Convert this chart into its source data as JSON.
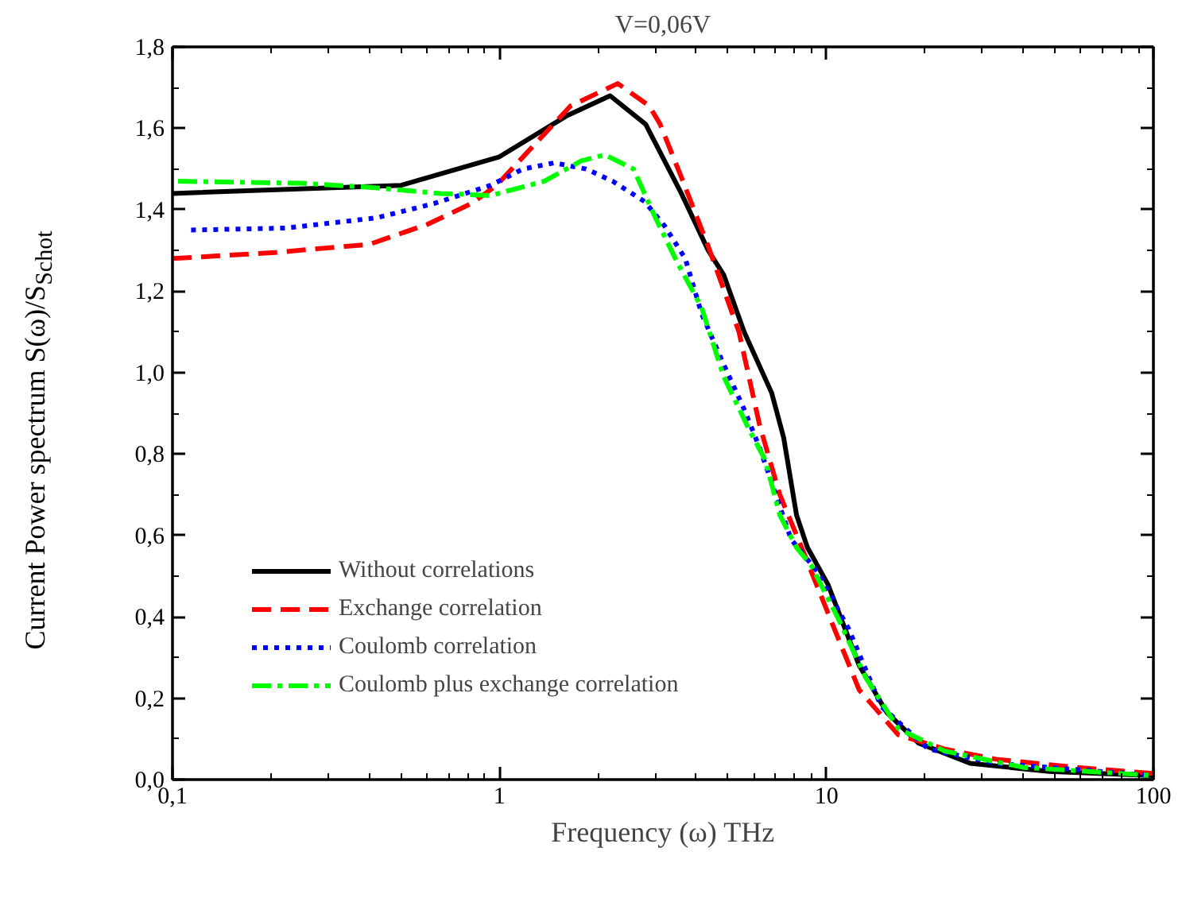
{
  "chart_data": {
    "type": "line",
    "title": "V=0,06V",
    "xlabel": "Frequency (ω) THz",
    "ylabel": "Current Power spectrum S(ω)/S$_{Schot}$",
    "log": "x",
    "xlim": [
      0.1,
      100
    ],
    "ylim": [
      0,
      1.8
    ],
    "xticks": [
      {
        "value": 0.1,
        "label": "0,1"
      },
      1,
      10,
      100
    ],
    "yticks": [
      {
        "value": 0,
        "label": "0,0"
      },
      {
        "value": 0.2,
        "label": "0,2"
      },
      {
        "value": 0.4,
        "label": "0,4"
      },
      {
        "value": 0.6,
        "label": "0,6"
      },
      {
        "value": 0.8,
        "label": "0,8"
      },
      {
        "value": 1.0,
        "label": "1,0"
      },
      {
        "value": 1.2,
        "label": "1,2"
      },
      {
        "value": 1.4,
        "label": "1,4"
      },
      {
        "value": 1.6,
        "label": "1,6"
      },
      {
        "value": 1.8,
        "label": "1,8"
      }
    ],
    "grid": false,
    "legend": "bottom left",
    "marker": "none",
    "series": [
      {
        "name": "Without correlations",
        "color": "#000000",
        "line_style": "solid",
        "x": [
          0.1,
          0.5,
          1.0,
          1.6,
          2.18,
          2.8,
          3.6,
          4.35,
          4.85,
          5.6,
          6.8,
          7.4,
          8.1,
          8.75,
          10.1,
          12.6,
          15.3,
          19.1,
          27.5,
          48,
          100
        ],
        "values": [
          1.44,
          1.46,
          1.53,
          1.63,
          1.68,
          1.61,
          1.44,
          1.3,
          1.24,
          1.1,
          0.95,
          0.84,
          0.65,
          0.57,
          0.48,
          0.28,
          0.165,
          0.09,
          0.04,
          0.02,
          0.01
        ]
      },
      {
        "name": "Exchange correlation",
        "color": "#ff0000",
        "line_style": "dashed",
        "x": [
          0.1,
          0.206,
          0.4,
          0.606,
          0.82,
          0.98,
          1.28,
          1.65,
          2.3,
          2.87,
          3.1,
          3.6,
          4.35,
          5.4,
          6.25,
          7.2,
          8.4,
          10.1,
          12.6,
          16.6,
          23,
          33,
          58,
          100
        ],
        "values": [
          1.28,
          1.295,
          1.315,
          1.365,
          1.415,
          1.46,
          1.56,
          1.655,
          1.71,
          1.655,
          1.61,
          1.48,
          1.31,
          1.1,
          0.87,
          0.7,
          0.57,
          0.41,
          0.22,
          0.11,
          0.075,
          0.05,
          0.03,
          0.015
        ]
      },
      {
        "name": "Coulomb correlation",
        "color": "#0000ff",
        "line_style": "dotted",
        "x": [
          0.114,
          0.223,
          0.42,
          0.63,
          0.94,
          1.18,
          1.47,
          1.84,
          2.22,
          2.78,
          3.2,
          3.7,
          4.15,
          4.85,
          5.6,
          6.25,
          7.0,
          7.8,
          9.4,
          11.7,
          14.7,
          20.5,
          33,
          100
        ],
        "values": [
          1.35,
          1.355,
          1.38,
          1.415,
          1.46,
          1.5,
          1.515,
          1.5,
          1.47,
          1.42,
          1.36,
          1.28,
          1.145,
          1.02,
          0.91,
          0.815,
          0.7,
          0.59,
          0.51,
          0.37,
          0.18,
          0.075,
          0.04,
          0.01
        ]
      },
      {
        "name": "Coulomb plus exchange correlation",
        "color": "#00ff00",
        "line_style": "dashdot",
        "x": [
          0.104,
          0.25,
          0.4,
          0.66,
          0.94,
          1.37,
          1.78,
          2.1,
          2.57,
          3.0,
          3.5,
          4.15,
          4.85,
          5.8,
          6.5,
          7.2,
          8.1,
          9.0,
          10.8,
          13.2,
          16.6,
          23,
          40,
          100
        ],
        "values": [
          1.47,
          1.465,
          1.455,
          1.44,
          1.435,
          1.47,
          1.52,
          1.535,
          1.5,
          1.38,
          1.27,
          1.16,
          0.99,
          0.86,
          0.785,
          0.65,
          0.57,
          0.525,
          0.4,
          0.25,
          0.125,
          0.07,
          0.03,
          0.01
        ]
      }
    ]
  }
}
